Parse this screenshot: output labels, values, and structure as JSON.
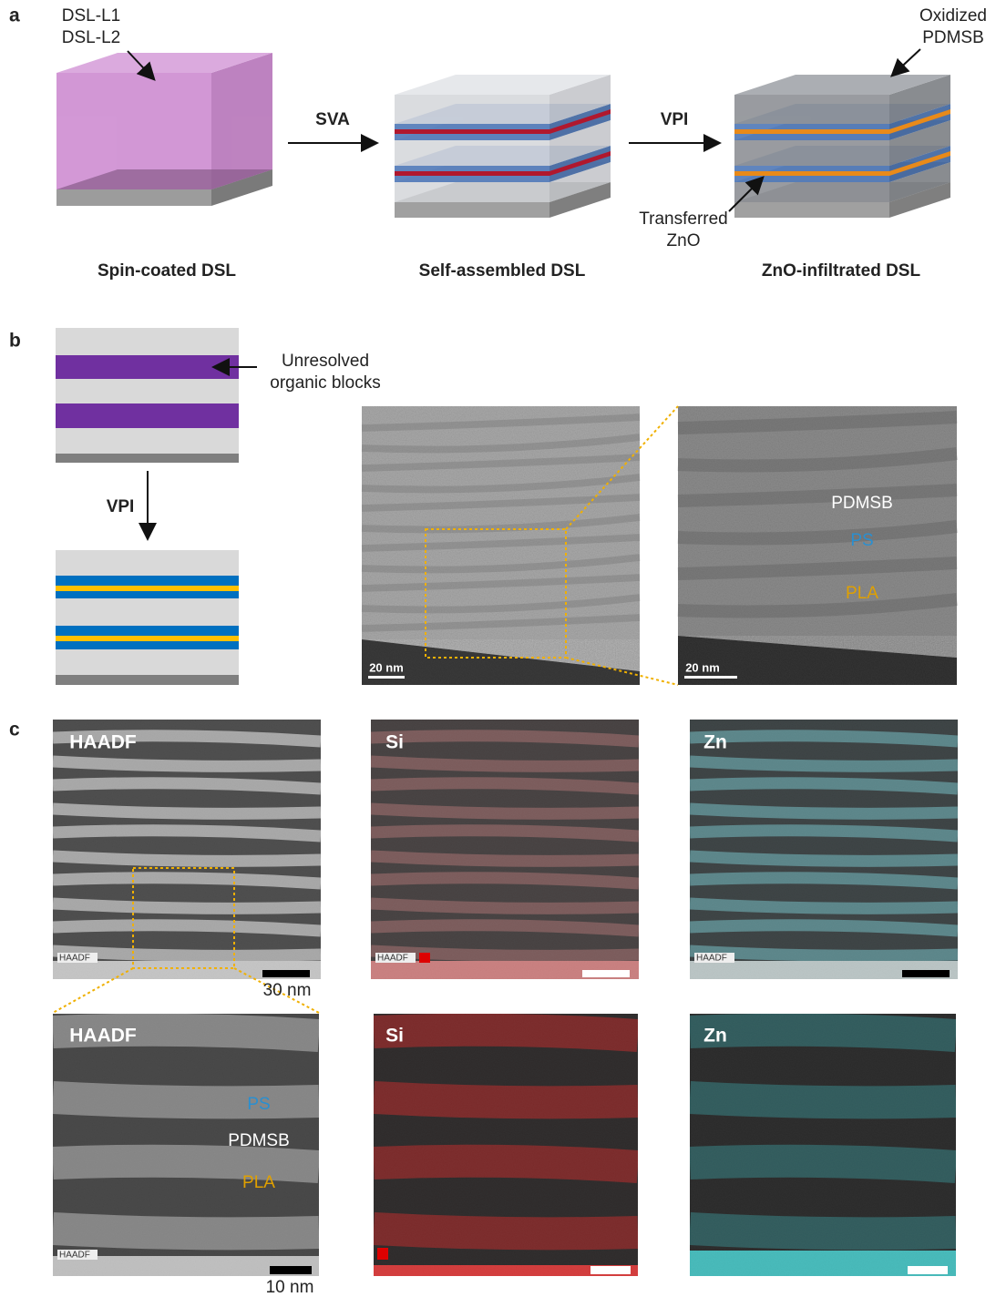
{
  "panel_a": {
    "label": "a",
    "top_left_label": [
      "DSL-L1",
      "DSL-L2"
    ],
    "top_right_label": [
      "Oxidized",
      "PDMSB"
    ],
    "arrow_1": "SVA",
    "arrow_2": "VPI",
    "callout": [
      "Transferred",
      "ZnO"
    ],
    "captions": [
      "Spin-coated DSL",
      "Self-assembled DSL",
      "ZnO-infiltrated DSL"
    ]
  },
  "panel_b": {
    "label": "b",
    "annotation": [
      "Unresolved",
      "organic blocks"
    ],
    "arrow": "VPI",
    "scale_bars": [
      "20 nm",
      "20 nm"
    ],
    "blocks": [
      "PDMSB",
      "PS",
      "PLA"
    ]
  },
  "panel_c": {
    "label": "c",
    "top_titles": [
      "HAADF",
      "Si",
      "Zn"
    ],
    "top_badges": [
      "HAADF",
      "HAADF",
      "HAADF"
    ],
    "top_scale": "30 nm",
    "bottom_titles": [
      "HAADF",
      "Si",
      "Zn"
    ],
    "bottom_badge": "HAADF",
    "blocks": [
      "PS",
      "PDMSB",
      "PLA"
    ],
    "bottom_scale": "10 nm"
  }
}
